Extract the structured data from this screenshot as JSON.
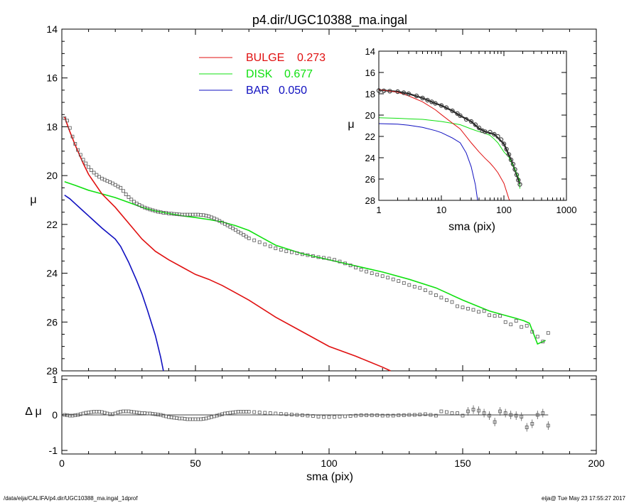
{
  "chart_data": [
    {
      "type": "line",
      "panel": "main",
      "title": "p4.dir/UGC10388_ma.ingal",
      "xlabel": "",
      "ylabel": "μ",
      "xlim": [
        0,
        200
      ],
      "ylim": [
        28,
        14
      ],
      "x_ticks": [
        0,
        50,
        100,
        150,
        200
      ],
      "y_ticks": [
        14,
        16,
        18,
        20,
        22,
        24,
        26,
        28
      ],
      "legend_position": "top-center",
      "legend": [
        {
          "label": "BULGE",
          "value": "0.273",
          "color": "#e01010"
        },
        {
          "label": "DISK",
          "value": "0.677",
          "color": "#10e010"
        },
        {
          "label": "BAR",
          "value": "0.050",
          "color": "#1010c0"
        }
      ],
      "series": [
        {
          "name": "data",
          "marker": "square",
          "color": "#555555",
          "x": [
            1,
            2,
            3,
            4,
            5,
            6,
            7,
            8,
            9,
            10,
            11,
            12,
            13,
            14,
            15,
            16,
            17,
            18,
            19,
            20,
            21,
            22,
            23,
            24,
            25,
            26,
            27,
            28,
            29,
            30,
            31,
            32,
            33,
            34,
            35,
            36,
            37,
            38,
            39,
            40,
            41,
            42,
            43,
            44,
            45,
            46,
            47,
            48,
            49,
            50,
            51,
            52,
            53,
            54,
            55,
            56,
            57,
            58,
            59,
            60,
            61,
            62,
            63,
            64,
            65,
            66,
            67,
            68,
            69,
            70,
            72,
            74,
            76,
            78,
            80,
            82,
            84,
            86,
            88,
            90,
            92,
            94,
            96,
            98,
            100,
            102,
            104,
            106,
            108,
            110,
            112,
            114,
            116,
            118,
            120,
            122,
            124,
            126,
            128,
            130,
            132,
            134,
            136,
            138,
            140,
            142,
            144,
            146,
            148,
            150,
            152,
            154,
            156,
            158,
            160,
            162,
            164,
            166,
            168,
            170,
            172,
            174,
            176,
            178,
            180,
            182
          ],
          "y": [
            17.65,
            17.75,
            18.05,
            18.4,
            18.7,
            18.95,
            19.15,
            19.35,
            19.5,
            19.65,
            19.78,
            19.88,
            19.97,
            20.05,
            20.12,
            20.17,
            20.22,
            20.27,
            20.32,
            20.38,
            20.45,
            20.5,
            20.63,
            20.77,
            20.88,
            20.98,
            21.07,
            21.14,
            21.2,
            21.26,
            21.31,
            21.35,
            21.39,
            21.42,
            21.45,
            21.48,
            21.5,
            21.52,
            21.53,
            21.55,
            21.56,
            21.57,
            21.58,
            21.59,
            21.6,
            21.6,
            21.6,
            21.6,
            21.6,
            21.6,
            21.6,
            21.61,
            21.62,
            21.64,
            21.67,
            21.71,
            21.75,
            21.8,
            21.86,
            21.92,
            21.98,
            22.04,
            22.1,
            22.16,
            22.23,
            22.3,
            22.36,
            22.43,
            22.5,
            22.57,
            22.65,
            22.73,
            22.82,
            22.9,
            22.98,
            23.04,
            23.1,
            23.14,
            23.18,
            23.22,
            23.26,
            23.3,
            23.34,
            23.37,
            23.4,
            23.45,
            23.52,
            23.6,
            23.68,
            23.77,
            23.85,
            23.93,
            24.0,
            24.06,
            24.12,
            24.18,
            24.25,
            24.32,
            24.4,
            24.48,
            24.55,
            24.6,
            24.7,
            24.8,
            24.9,
            25.0,
            25.1,
            25.18,
            25.35,
            25.4,
            25.45,
            25.5,
            25.58,
            25.55,
            25.72,
            25.75,
            25.75,
            26.0,
            26.1,
            25.95,
            26.2,
            26.15,
            26.4,
            26.6,
            26.8,
            26.45
          ],
          "error_bars": true
        }
      ],
      "model_curves": [
        {
          "name": "model",
          "color": "#10e010",
          "x": [
            1,
            5,
            10,
            15,
            20,
            25,
            30,
            35,
            40,
            45,
            50,
            55,
            60,
            65,
            70,
            75,
            80,
            90,
            100,
            110,
            120,
            130,
            140,
            150,
            160,
            165,
            170,
            173,
            175,
            178,
            181
          ],
          "y": [
            20.25,
            20.4,
            20.6,
            20.75,
            20.9,
            21.1,
            21.3,
            21.45,
            21.55,
            21.65,
            21.72,
            21.8,
            21.9,
            22.05,
            22.25,
            22.55,
            22.85,
            23.2,
            23.45,
            23.7,
            23.95,
            24.25,
            24.6,
            25.1,
            25.55,
            25.7,
            25.85,
            25.95,
            26.05,
            26.9,
            26.75
          ]
        },
        {
          "name": "bulge",
          "color": "#e01010",
          "x": [
            1,
            3,
            5,
            8,
            10,
            15,
            20,
            25,
            30,
            35,
            40,
            45,
            50,
            55,
            60,
            65,
            70,
            80,
            90,
            100,
            110,
            120,
            123
          ],
          "y": [
            17.6,
            18.2,
            18.75,
            19.5,
            19.95,
            20.75,
            21.3,
            21.95,
            22.6,
            23.1,
            23.45,
            23.75,
            24.05,
            24.25,
            24.5,
            24.8,
            25.1,
            25.8,
            26.4,
            27.0,
            27.4,
            27.85,
            28.0
          ]
        },
        {
          "name": "bar",
          "color": "#1010c0",
          "x": [
            1,
            3,
            5,
            8,
            10,
            15,
            20,
            22,
            25,
            28,
            30,
            32,
            35,
            37,
            38
          ],
          "y": [
            20.8,
            20.95,
            21.15,
            21.45,
            21.65,
            22.15,
            22.6,
            22.9,
            23.55,
            24.3,
            24.85,
            25.5,
            26.55,
            27.45,
            28.0
          ]
        }
      ]
    },
    {
      "type": "scatter",
      "panel": "inset",
      "title": "",
      "xlabel": "sma (pix)",
      "ylabel": "μ",
      "x_scale": "log",
      "xlim": [
        1,
        1000
      ],
      "ylim": [
        28,
        14
      ],
      "x_ticks": [
        1,
        10,
        100,
        1000
      ],
      "y_ticks": [
        14,
        16,
        18,
        20,
        22,
        24,
        26,
        28
      ],
      "series": [
        {
          "name": "data",
          "marker": "circle",
          "color": "#444444",
          "x": [
            1,
            1.2,
            1.5,
            2,
            2.5,
            3,
            4,
            5,
            6,
            7,
            8,
            10,
            12,
            15,
            18,
            20,
            25,
            30,
            35,
            40,
            45,
            50,
            60,
            70,
            80,
            90,
            100,
            110,
            120,
            130,
            140,
            150,
            160,
            170,
            180
          ],
          "y": [
            17.7,
            17.72,
            17.75,
            17.8,
            17.9,
            18.0,
            18.2,
            18.4,
            18.6,
            18.75,
            18.9,
            19.1,
            19.3,
            19.6,
            19.85,
            20.05,
            20.4,
            20.6,
            20.9,
            21.2,
            21.45,
            21.55,
            21.6,
            21.8,
            22.0,
            22.3,
            22.7,
            23.2,
            23.7,
            24.2,
            24.6,
            25.1,
            25.6,
            26.1,
            26.5
          ]
        }
      ],
      "model_curves": [
        {
          "name": "model",
          "color": "#202020",
          "x": [
            1,
            2,
            3,
            5,
            8,
            10,
            15,
            20,
            30,
            40,
            50,
            70,
            100,
            130,
            160,
            180
          ],
          "y": [
            17.65,
            17.8,
            18.0,
            18.4,
            18.9,
            19.1,
            19.6,
            20.05,
            20.6,
            21.25,
            21.55,
            21.8,
            22.7,
            24.2,
            25.6,
            26.5
          ]
        },
        {
          "name": "disk",
          "color": "#10e010",
          "x": [
            1,
            2,
            3,
            5,
            10,
            20,
            30,
            40,
            50,
            60,
            70,
            80,
            100,
            120,
            150,
            175,
            180
          ],
          "y": [
            20.25,
            20.3,
            20.35,
            20.4,
            20.6,
            20.9,
            21.3,
            21.55,
            21.72,
            21.9,
            22.25,
            22.6,
            23.45,
            23.95,
            25.1,
            26.0,
            26.9
          ]
        },
        {
          "name": "bulge",
          "color": "#e01010",
          "x": [
            1,
            1.5,
            2,
            3,
            5,
            8,
            10,
            15,
            20,
            30,
            40,
            50,
            60,
            70,
            80,
            100,
            120,
            123
          ],
          "y": [
            17.6,
            17.75,
            17.85,
            18.2,
            18.75,
            19.5,
            19.95,
            20.75,
            21.3,
            22.6,
            23.45,
            24.05,
            24.5,
            24.95,
            25.4,
            26.4,
            27.85,
            28.0
          ]
        },
        {
          "name": "bar",
          "color": "#1010c0",
          "x": [
            1,
            2,
            3,
            5,
            8,
            10,
            15,
            20,
            25,
            30,
            35,
            38
          ],
          "y": [
            20.8,
            20.85,
            20.95,
            21.15,
            21.45,
            21.65,
            22.15,
            22.6,
            23.55,
            24.85,
            26.55,
            28.0
          ]
        }
      ]
    },
    {
      "type": "scatter",
      "panel": "residual",
      "title": "",
      "xlabel": "sma (pix)",
      "ylabel": "Δ μ",
      "xlim": [
        0,
        200
      ],
      "ylim": [
        -1.1,
        1.1
      ],
      "x_ticks": [
        0,
        50,
        100,
        150,
        200
      ],
      "y_ticks": [
        1,
        0,
        -1
      ],
      "series": [
        {
          "name": "residual",
          "marker": "square",
          "color": "#555555",
          "x": [
            1,
            2,
            3,
            4,
            5,
            6,
            7,
            8,
            9,
            10,
            11,
            12,
            13,
            14,
            15,
            16,
            17,
            18,
            19,
            20,
            21,
            22,
            23,
            24,
            25,
            26,
            27,
            28,
            29,
            30,
            31,
            32,
            33,
            34,
            35,
            36,
            37,
            38,
            39,
            40,
            41,
            42,
            43,
            44,
            45,
            46,
            47,
            48,
            49,
            50,
            51,
            52,
            53,
            54,
            55,
            56,
            57,
            58,
            59,
            60,
            61,
            62,
            63,
            64,
            65,
            66,
            67,
            68,
            69,
            70,
            72,
            74,
            76,
            78,
            80,
            82,
            84,
            86,
            88,
            90,
            92,
            94,
            96,
            98,
            100,
            102,
            104,
            106,
            108,
            110,
            112,
            114,
            116,
            118,
            120,
            122,
            124,
            126,
            128,
            130,
            132,
            134,
            136,
            138,
            140,
            142,
            144,
            146,
            148,
            150,
            152,
            154,
            156,
            158,
            160,
            162,
            164,
            166,
            168,
            170,
            172,
            174,
            176,
            178,
            180,
            182
          ],
          "y": [
            0.0,
            -0.01,
            -0.02,
            -0.02,
            -0.01,
            0.0,
            0.02,
            0.04,
            0.06,
            0.07,
            0.08,
            0.09,
            0.09,
            0.09,
            0.08,
            0.06,
            0.04,
            0.02,
            0.02,
            0.04,
            0.07,
            0.09,
            0.1,
            0.1,
            0.1,
            0.09,
            0.08,
            0.07,
            0.06,
            0.05,
            0.05,
            0.04,
            0.04,
            0.03,
            0.02,
            0.01,
            0.0,
            -0.02,
            -0.04,
            -0.06,
            -0.07,
            -0.08,
            -0.09,
            -0.1,
            -0.1,
            -0.11,
            -0.12,
            -0.12,
            -0.12,
            -0.12,
            -0.12,
            -0.12,
            -0.11,
            -0.1,
            -0.08,
            -0.06,
            -0.04,
            -0.02,
            0.0,
            0.02,
            0.04,
            0.05,
            0.06,
            0.07,
            0.08,
            0.09,
            0.09,
            0.09,
            0.09,
            0.09,
            0.08,
            0.07,
            0.06,
            0.05,
            0.04,
            0.03,
            0.02,
            0.01,
            0.0,
            -0.01,
            -0.02,
            -0.03,
            -0.05,
            -0.06,
            -0.06,
            -0.06,
            -0.05,
            -0.04,
            -0.03,
            -0.02,
            -0.01,
            -0.01,
            -0.01,
            -0.01,
            -0.02,
            -0.02,
            -0.02,
            -0.01,
            -0.01,
            0.0,
            0.0,
            0.01,
            0.02,
            0.0,
            -0.02,
            0.1,
            0.08,
            0.05,
            0.05,
            -0.02,
            0.1,
            0.15,
            0.12,
            0.05,
            -0.02,
            -0.2,
            0.1,
            0.05,
            0.0,
            -0.02,
            -0.05,
            -0.35,
            -0.25,
            0.0,
            0.05,
            -0.3
          ],
          "error_bars": true
        }
      ]
    }
  ],
  "footer": {
    "path": "/data/eija/CALIFA/p4.dir/UGC10388_ma.ingal_1dprof",
    "user_time": "eija@  Tue May 23 17:55:27 2017"
  }
}
